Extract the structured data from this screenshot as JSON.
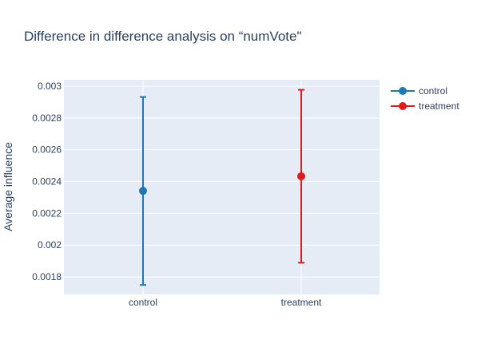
{
  "chart_data": {
    "type": "scatter",
    "title": "Difference in difference analysis on “numVote\"",
    "xlabel": "",
    "ylabel": "Average influence",
    "categories": [
      "control",
      "treatment"
    ],
    "ylim": [
      0.00169,
      0.00304
    ],
    "y_ticks": [
      0.0018,
      0.002,
      0.0022,
      0.0024,
      0.0026,
      0.0028,
      0.003
    ],
    "y_tick_labels": [
      "0.0018",
      "0.002",
      "0.0022",
      "0.0024",
      "0.0026",
      "0.0028",
      "0.003"
    ],
    "grid": true,
    "legend_position": "top-right",
    "plot_background": "#e5ecf6",
    "series": [
      {
        "name": "control",
        "category": "control",
        "y": 0.002341,
        "error_upper": 0.002932,
        "error_lower": 0.001749,
        "color": "#1f77b4"
      },
      {
        "name": "treatment",
        "category": "treatment",
        "y": 0.002433,
        "error_upper": 0.002977,
        "error_lower": 0.001889,
        "color": "#e31a1c"
      }
    ]
  }
}
